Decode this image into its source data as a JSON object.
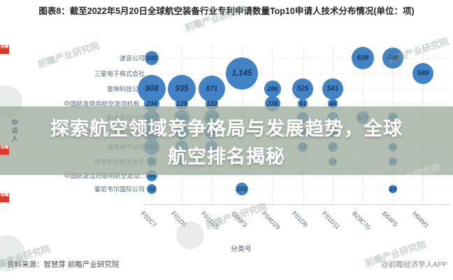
{
  "title": "图表8：截至2022年5月20日全球航空装备行业专利申请数量Top10申请人技术分布情况(单位：项)",
  "overlay": {
    "line1": "探索航空领域竞争格局与发展趋势，全球",
    "line2": "航空排名揭秘"
  },
  "chart_data": {
    "type": "scatter",
    "title": "截至2022年5月20日全球航空装备行业专利申请数量Top10申请人技术分布情况",
    "unit": "项",
    "xlabel": "分类号",
    "ylabel": "申请人",
    "grid": "dashed",
    "x_categories": [
      "F02C7",
      "F01D5",
      "F01D25",
      "G06F3",
      "F04D29",
      "F01D9",
      "F01D11",
      "B29C70",
      "B64F5",
      "H04M1"
    ],
    "y_categories": [
      "波音公司",
      "三星电子株式会社",
      "雷神科技公司",
      "中国航发商用航空发动机有...",
      "斯奈克玛公司",
      "中国航空工业集团公司",
      "通用电气公司",
      "南京航空航天大学",
      "中国航发沈阳黎明航空发动...",
      "霍尼韦尔国际公司"
    ],
    "points": [
      {
        "row": 0,
        "col": 0,
        "value": 102,
        "label": "102",
        "r": 10
      },
      {
        "row": 0,
        "col": 7,
        "value": 639,
        "label": "639",
        "r": 16
      },
      {
        "row": 0,
        "col": 8,
        "value": 490,
        "label": "490",
        "r": 15
      },
      {
        "row": 1,
        "col": 3,
        "value": 1145,
        "label": "1,145",
        "r": 23
      },
      {
        "row": 1,
        "col": 9,
        "value": 589,
        "label": "589",
        "r": 15
      },
      {
        "row": 2,
        "col": 0,
        "value": 908,
        "label": "908",
        "r": 20
      },
      {
        "row": 2,
        "col": 1,
        "value": 935,
        "label": "935",
        "r": 20
      },
      {
        "row": 2,
        "col": 2,
        "value": 871,
        "label": "871",
        "r": 19
      },
      {
        "row": 2,
        "col": 4,
        "value": 286,
        "label": "286",
        "r": 12
      },
      {
        "row": 2,
        "col": 5,
        "value": 525,
        "label": "525",
        "r": 15
      },
      {
        "row": 2,
        "col": 6,
        "value": 541,
        "label": "541",
        "r": 15
      },
      {
        "row": 3,
        "col": 0,
        "value": 234,
        "label": "234",
        "r": 11
      },
      {
        "row": 3,
        "col": 1,
        "value": 129,
        "label": "129",
        "r": 9
      },
      {
        "row": 3,
        "col": 2,
        "value": 122,
        "label": "122",
        "r": 9
      },
      {
        "row": 3,
        "col": 4,
        "value": 238,
        "label": "238",
        "r": 11
      },
      {
        "row": 3,
        "col": 5,
        "value": 61,
        "label": "61",
        "r": 7
      },
      {
        "row": 3,
        "col": 6,
        "value": 48,
        "label": "48",
        "r": 7
      },
      {
        "row": 4,
        "col": 0,
        "value": 237,
        "label": "237",
        "r": 11
      },
      {
        "row": 4,
        "col": 1,
        "value": 257,
        "label": "257",
        "r": 11
      },
      {
        "row": 4,
        "col": 2,
        "value": 227,
        "label": "227",
        "r": 11
      },
      {
        "row": 4,
        "col": 5,
        "value": null,
        "label": "",
        "r": 8
      },
      {
        "row": 4,
        "col": 6,
        "value": null,
        "label": "",
        "r": 8
      },
      {
        "row": 4,
        "col": 7,
        "value": 123,
        "label": "123",
        "r": 9
      },
      {
        "row": 4,
        "col": 8,
        "value": 51,
        "label": "51",
        "r": 7
      },
      {
        "row": 5,
        "col": 0,
        "value": null,
        "label": "",
        "r": 12
      },
      {
        "row": 5,
        "col": 1,
        "value": null,
        "label": "",
        "r": 10
      },
      {
        "row": 5,
        "col": 2,
        "value": null,
        "label": "",
        "r": 10
      },
      {
        "row": 5,
        "col": 5,
        "value": 46,
        "label": "46",
        "r": 7
      },
      {
        "row": 5,
        "col": 6,
        "value": 48,
        "label": "48",
        "r": 7
      },
      {
        "row": 6,
        "col": 0,
        "value": 266,
        "label": "266",
        "r": 11
      },
      {
        "row": 6,
        "col": 1,
        "value": null,
        "label": "",
        "r": 9
      },
      {
        "row": 6,
        "col": 2,
        "value": null,
        "label": "",
        "r": 9
      },
      {
        "row": 6,
        "col": 5,
        "value": 74,
        "label": "74",
        "r": 7
      },
      {
        "row": 6,
        "col": 6,
        "value": 67,
        "label": "67",
        "r": 7
      },
      {
        "row": 6,
        "col": 8,
        "value": 22,
        "label": "22",
        "r": 6
      },
      {
        "row": 7,
        "col": 0,
        "value": 50,
        "label": "50",
        "r": 7
      },
      {
        "row": 7,
        "col": 1,
        "value": null,
        "label": "",
        "r": 6
      },
      {
        "row": 7,
        "col": 6,
        "value": 19,
        "label": "19",
        "r": 6
      },
      {
        "row": 7,
        "col": 8,
        "value": 26,
        "label": "26",
        "r": 6
      },
      {
        "row": 8,
        "col": 0,
        "value": 55,
        "label": "55",
        "r": 8
      },
      {
        "row": 9,
        "col": 0,
        "value": 32,
        "label": "32",
        "r": 7
      },
      {
        "row": 9,
        "col": 3,
        "value": 101,
        "label": "101",
        "r": 9
      },
      {
        "row": 9,
        "col": 8,
        "value": 23,
        "label": "23",
        "r": 6
      }
    ]
  },
  "footer": {
    "source": "资料来源：智慧芽 前瞻产业研究院",
    "credit": "@前瞻经济学人APP"
  },
  "watermark": {
    "text": "前瞻产业研究院",
    "logo_text": "前瞻"
  },
  "colors": {
    "bubble": "#4183c4",
    "bubble_label": "#17365e",
    "banner_bg": "#9dae9e",
    "banner_text": "#ffffff",
    "accent_red": "#d93a2b"
  }
}
